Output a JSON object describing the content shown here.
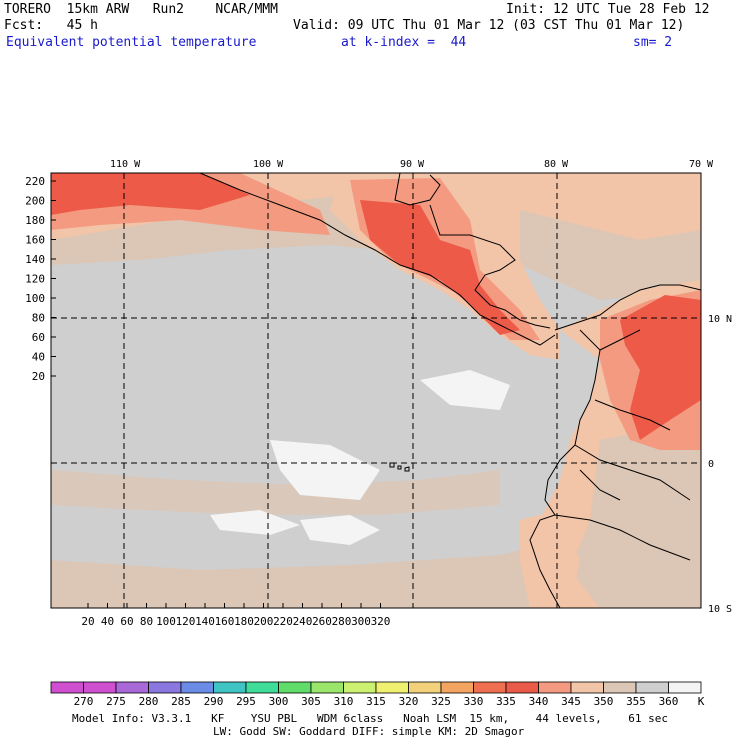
{
  "header": {
    "model": "TORERO  15km ARW   Run2    NCAR/MMM",
    "init": "Init: 12 UTC Tue 28 Feb 12",
    "fcst": "Fcst:   45 h",
    "valid": "Valid: 09 UTC Thu 01 Mar 12 (03 CST Thu 01 Mar 12)",
    "field": "Equivalent potential temperature",
    "level": "at k-index =  44",
    "smooth": "sm= 2"
  },
  "map": {
    "top_lon_labels": [
      "110 W",
      "100 W",
      "90 W",
      "80 W",
      "70 W"
    ],
    "right_lat_labels": [
      "10 N",
      "0",
      "10 S"
    ],
    "y_ticks": [
      "220",
      "200",
      "180",
      "160",
      "140",
      "120",
      "100",
      "80",
      "60",
      "40",
      "20"
    ],
    "x_ticks": [
      "20",
      "40",
      "60",
      "80",
      "100",
      "120",
      "140",
      "160",
      "180",
      "200",
      "220",
      "240",
      "260",
      "280",
      "300",
      "320"
    ],
    "colors": {
      "ocean": "#cfcfcf",
      "warm_band": "#dcc6b5",
      "peach": "#f2c4a8",
      "salmon": "#f39a80",
      "red": "#ee5a48",
      "white": "#f4f4f4"
    }
  },
  "legend": {
    "values": [
      "270",
      "275",
      "280",
      "285",
      "290",
      "295",
      "300",
      "305",
      "310",
      "315",
      "320",
      "325",
      "330",
      "335",
      "340",
      "345",
      "350",
      "355",
      "360"
    ],
    "colors": [
      "#d04fd0",
      "#a868d8",
      "#8a78e0",
      "#6a8ce6",
      "#3fc3c3",
      "#3fdc9a",
      "#5fdc6a",
      "#9ae66a",
      "#ccf070",
      "#f0f070",
      "#f3d07a",
      "#f3a460",
      "#ef7050",
      "#ea5a48",
      "#f39a80",
      "#f2c4a8",
      "#dcc6b5",
      "#cfcfcf",
      "#f4f4f4"
    ],
    "unit": "K"
  },
  "footer": {
    "line1": "Model Info: V3.3.1   KF    YSU PBL   WDM 6class   Noah LSM  15 km,    44 levels,    61 sec",
    "line2": "LW: Godd SW: Goddard DIFF: simple KM: 2D Smagor"
  }
}
